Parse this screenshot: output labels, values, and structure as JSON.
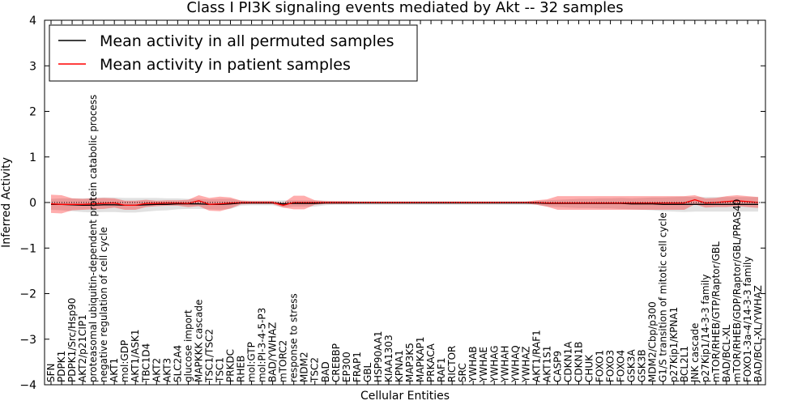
{
  "chart_data": {
    "type": "line",
    "title": "Class I PI3K signaling events mediated by Akt -- 32 samples",
    "xlabel": "Cellular Entities",
    "ylabel": "Inferred Activity",
    "ylim": [
      -4,
      4
    ],
    "yticks": [
      "−4",
      "−3",
      "−2",
      "−1",
      "0",
      "1",
      "2",
      "3",
      "4"
    ],
    "legend_position": "top-left",
    "categories": [
      "SFN",
      "PDPK1",
      "PDPK1/Src/Hsp90",
      "AKT2/p21CIP1",
      "proteasomal ubiquitin-dependent protein catabolic process",
      "negative regulation of cell cycle",
      "AKT1",
      "mol:GDP",
      "AKT1/ASK1",
      "TBC1D4",
      "AKT2",
      "AKT3",
      "SLC2A4",
      "glucose import",
      "MAPKKK cascade",
      "TSC1/TSC2",
      "TSC1",
      "PRKDC",
      "RHEB",
      "mol:GTP",
      "mol:PI-3-4-5-P3",
      "BAD/YWHAZ",
      "mTORC2",
      "response to stress",
      "MDM2",
      "TSC2",
      "BAD",
      "CREBBP",
      "EP300",
      "FRAP1",
      "GBL",
      "HSP90AA1",
      "KIAA1303",
      "KPNA1",
      "MAP3K5",
      "MAPKAP1",
      "PRKACA",
      "RAF1",
      "RICTOR",
      "SRC",
      "YWHAB",
      "YWHAE",
      "YWHAG",
      "YWHAH",
      "YWHAQ",
      "YWHAZ",
      "AKT1/RAF1",
      "AKT1S1",
      "CASP9",
      "CDKN1A",
      "CDKN1B",
      "CHUK",
      "FOXO1",
      "FOXO3",
      "FOXO4",
      "GSK3A",
      "GSK3B",
      "MDM2/Cbp/p300",
      "G1/S transition of mitotic cell cycle",
      "p27Kip1/KPNA1",
      "BCL2L1",
      "JNK cascade",
      "p27Kip1/14-3-3 family",
      "mTOR/RHEB/GTP/Raptor/GBL",
      "BAD/BCL-XL",
      "mTOR/RHEB/GDP/Raptor/GBL/PRAS40",
      "FOXO1-3a-4/14-3-3 family",
      "BAD/BCL-XL/YWHAZ"
    ],
    "series": [
      {
        "name": "Mean activity in all permuted samples",
        "color": "#000000",
        "values": [
          -0.04,
          -0.04,
          -0.05,
          -0.06,
          -0.06,
          -0.05,
          -0.05,
          -0.06,
          -0.06,
          -0.05,
          -0.04,
          -0.04,
          -0.03,
          -0.03,
          -0.03,
          -0.04,
          -0.04,
          -0.03,
          -0.01,
          -0.01,
          -0.01,
          -0.01,
          -0.03,
          -0.02,
          -0.02,
          -0.02,
          -0.01,
          -0.01,
          -0.01,
          -0.01,
          -0.01,
          -0.01,
          -0.01,
          -0.01,
          -0.01,
          -0.01,
          -0.01,
          -0.01,
          -0.01,
          -0.01,
          -0.01,
          -0.01,
          -0.01,
          -0.01,
          -0.01,
          -0.01,
          -0.01,
          -0.02,
          -0.02,
          -0.02,
          -0.02,
          -0.02,
          -0.02,
          -0.02,
          -0.02,
          -0.03,
          -0.03,
          -0.03,
          -0.04,
          -0.04,
          -0.04,
          -0.04,
          -0.04,
          -0.04,
          -0.04,
          -0.04,
          -0.04,
          -0.04
        ],
        "band": [
          0.12,
          0.13,
          0.14,
          0.15,
          0.16,
          0.16,
          0.16,
          0.16,
          0.16,
          0.15,
          0.14,
          0.13,
          0.12,
          0.11,
          0.11,
          0.11,
          0.12,
          0.11,
          0.06,
          0.05,
          0.05,
          0.05,
          0.08,
          0.07,
          0.07,
          0.07,
          0.05,
          0.04,
          0.04,
          0.04,
          0.04,
          0.04,
          0.04,
          0.04,
          0.04,
          0.04,
          0.04,
          0.04,
          0.04,
          0.04,
          0.04,
          0.04,
          0.04,
          0.04,
          0.04,
          0.04,
          0.04,
          0.07,
          0.08,
          0.09,
          0.1,
          0.1,
          0.11,
          0.11,
          0.12,
          0.12,
          0.13,
          0.14,
          0.15,
          0.16,
          0.17,
          0.16,
          0.16,
          0.16,
          0.16,
          0.16,
          0.16,
          0.16
        ]
      },
      {
        "name": "Mean activity in patient samples",
        "color": "#ff0000",
        "values": [
          -0.03,
          -0.04,
          -0.04,
          -0.04,
          -0.03,
          -0.02,
          -0.01,
          -0.06,
          -0.06,
          -0.02,
          -0.02,
          -0.01,
          -0.01,
          -0.02,
          0.04,
          -0.04,
          -0.03,
          -0.01,
          0.0,
          0.0,
          0.0,
          0.0,
          -0.06,
          0.0,
          0.0,
          0.0,
          0.0,
          0.0,
          0.0,
          0.0,
          0.0,
          0.0,
          0.0,
          0.0,
          0.0,
          0.0,
          0.0,
          0.0,
          0.0,
          0.0,
          0.0,
          0.0,
          0.0,
          0.0,
          0.0,
          0.0,
          0.0,
          -0.01,
          -0.01,
          -0.01,
          -0.01,
          -0.01,
          -0.01,
          -0.01,
          -0.01,
          -0.01,
          -0.01,
          -0.01,
          -0.01,
          -0.01,
          -0.01,
          0.06,
          -0.01,
          0.0,
          0.02,
          0.04,
          0.02,
          0.0
        ],
        "band": [
          0.2,
          0.2,
          0.13,
          0.12,
          0.12,
          0.12,
          0.1,
          0.1,
          0.1,
          0.08,
          0.06,
          0.06,
          0.06,
          0.08,
          0.12,
          0.14,
          0.16,
          0.12,
          0.04,
          0.03,
          0.03,
          0.03,
          0.05,
          0.15,
          0.15,
          0.05,
          0.03,
          0.03,
          0.03,
          0.02,
          0.02,
          0.02,
          0.02,
          0.02,
          0.02,
          0.02,
          0.02,
          0.02,
          0.02,
          0.02,
          0.02,
          0.02,
          0.02,
          0.02,
          0.02,
          0.02,
          0.05,
          0.08,
          0.15,
          0.15,
          0.15,
          0.15,
          0.15,
          0.15,
          0.15,
          0.15,
          0.15,
          0.15,
          0.15,
          0.15,
          0.15,
          0.1,
          0.1,
          0.1,
          0.12,
          0.12,
          0.12,
          0.12
        ]
      }
    ]
  }
}
